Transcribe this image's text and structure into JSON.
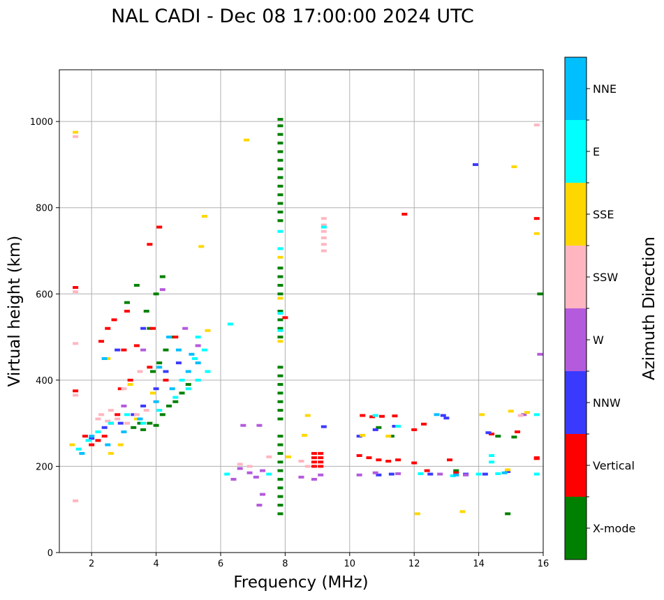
{
  "chart_data": {
    "type": "scatter",
    "title": "NAL CADI - Dec 08 17:00:00 2024 UTC",
    "xlabel": "Frequency (MHz)",
    "ylabel": "Virtual height (km)",
    "xlim": [
      1,
      16
    ],
    "ylim": [
      0,
      1120
    ],
    "xticks": [
      2,
      4,
      6,
      8,
      10,
      12,
      14,
      16
    ],
    "yticks": [
      0,
      200,
      400,
      600,
      800,
      1000
    ],
    "grid": true,
    "colorbar": {
      "label": "Azimuth Direction",
      "categories": [
        {
          "name": "X-mode",
          "color": "#008000"
        },
        {
          "name": "Vertical",
          "color": "#ff0000"
        },
        {
          "name": "NNW",
          "color": "#3a3aff"
        },
        {
          "name": "W",
          "color": "#b45adc"
        },
        {
          "name": "SSW",
          "color": "#ffb6c1"
        },
        {
          "name": "SSE",
          "color": "#ffd700"
        },
        {
          "name": "E",
          "color": "#00ffff"
        },
        {
          "name": "NNE",
          "color": "#00bfff"
        }
      ]
    },
    "series": [
      {
        "name": "X-mode",
        "points": [
          [
            7.85,
            1005
          ],
          [
            7.85,
            990
          ],
          [
            7.85,
            970
          ],
          [
            7.85,
            950
          ],
          [
            7.85,
            930
          ],
          [
            7.85,
            910
          ],
          [
            7.85,
            890
          ],
          [
            7.85,
            870
          ],
          [
            7.85,
            850
          ],
          [
            7.85,
            830
          ],
          [
            7.85,
            810
          ],
          [
            7.85,
            790
          ],
          [
            7.85,
            770
          ],
          [
            7.85,
            660
          ],
          [
            7.85,
            640
          ],
          [
            7.85,
            620
          ],
          [
            7.85,
            600
          ],
          [
            7.85,
            560
          ],
          [
            7.85,
            540
          ],
          [
            7.85,
            520
          ],
          [
            7.85,
            500
          ],
          [
            7.85,
            430
          ],
          [
            7.85,
            410
          ],
          [
            7.85,
            390
          ],
          [
            7.85,
            370
          ],
          [
            7.85,
            350
          ],
          [
            7.85,
            330
          ],
          [
            7.85,
            310
          ],
          [
            7.85,
            270
          ],
          [
            7.85,
            250
          ],
          [
            7.85,
            230
          ],
          [
            7.85,
            210
          ],
          [
            7.85,
            190
          ],
          [
            7.85,
            170
          ],
          [
            7.85,
            150
          ],
          [
            7.85,
            130
          ],
          [
            7.85,
            110
          ],
          [
            7.85,
            90
          ],
          [
            3.6,
            285
          ],
          [
            3.8,
            300
          ],
          [
            4.0,
            295
          ],
          [
            4.2,
            320
          ],
          [
            4.4,
            340
          ],
          [
            4.6,
            350
          ],
          [
            4.8,
            370
          ],
          [
            5.0,
            390
          ],
          [
            3.9,
            420
          ],
          [
            4.1,
            440
          ],
          [
            4.3,
            470
          ],
          [
            4.5,
            500
          ],
          [
            3.7,
            560
          ],
          [
            4.0,
            600
          ],
          [
            4.2,
            640
          ],
          [
            3.4,
            620
          ],
          [
            3.1,
            580
          ],
          [
            3.8,
            520
          ],
          [
            3.5,
            300
          ],
          [
            3.3,
            290
          ],
          [
            15.9,
            600
          ],
          [
            10.9,
            290
          ],
          [
            11.3,
            270
          ],
          [
            14.9,
            90
          ],
          [
            14.6,
            270
          ],
          [
            15.1,
            268
          ],
          [
            13.3,
            190
          ]
        ]
      },
      {
        "name": "Vertical",
        "points": [
          [
            1.5,
            615
          ],
          [
            1.5,
            375
          ],
          [
            1.8,
            270
          ],
          [
            2.0,
            250
          ],
          [
            2.2,
            260
          ],
          [
            2.4,
            270
          ],
          [
            2.6,
            300
          ],
          [
            2.8,
            320
          ],
          [
            2.5,
            520
          ],
          [
            2.3,
            490
          ],
          [
            2.7,
            540
          ],
          [
            3.1,
            560
          ],
          [
            3.0,
            470
          ],
          [
            3.4,
            480
          ],
          [
            2.9,
            380
          ],
          [
            3.2,
            400
          ],
          [
            3.8,
            430
          ],
          [
            3.9,
            520
          ],
          [
            4.1,
            755
          ],
          [
            3.8,
            715
          ],
          [
            4.3,
            400
          ],
          [
            4.6,
            500
          ],
          [
            8.9,
            230
          ],
          [
            8.9,
            220
          ],
          [
            8.9,
            210
          ],
          [
            8.9,
            200
          ],
          [
            9.1,
            230
          ],
          [
            9.1,
            220
          ],
          [
            9.1,
            210
          ],
          [
            9.1,
            200
          ],
          [
            10.3,
            225
          ],
          [
            10.6,
            220
          ],
          [
            10.9,
            215
          ],
          [
            11.2,
            212
          ],
          [
            11.5,
            215
          ],
          [
            11.7,
            785
          ],
          [
            12.0,
            285
          ],
          [
            12.3,
            298
          ],
          [
            12.0,
            208
          ],
          [
            12.4,
            190
          ],
          [
            13.1,
            215
          ],
          [
            13.3,
            185
          ],
          [
            14.4,
            275
          ],
          [
            15.2,
            280
          ],
          [
            15.8,
            775
          ],
          [
            15.8,
            218
          ],
          [
            15.8,
            220
          ],
          [
            8.0,
            545
          ],
          [
            10.4,
            318
          ],
          [
            10.7,
            315
          ],
          [
            11.0,
            316
          ],
          [
            11.4,
            317
          ]
        ]
      },
      {
        "name": "NNW",
        "points": [
          [
            2.0,
            265
          ],
          [
            2.4,
            290
          ],
          [
            2.9,
            300
          ],
          [
            3.3,
            320
          ],
          [
            3.6,
            340
          ],
          [
            4.0,
            380
          ],
          [
            4.3,
            420
          ],
          [
            4.7,
            440
          ],
          [
            2.8,
            470
          ],
          [
            3.6,
            520
          ],
          [
            13.9,
            900
          ],
          [
            9.2,
            292
          ],
          [
            10.3,
            270
          ],
          [
            10.8,
            285
          ],
          [
            11.4,
            293
          ],
          [
            10.9,
            180
          ],
          [
            11.3,
            182
          ],
          [
            12.5,
            182
          ],
          [
            13.0,
            312
          ],
          [
            13.6,
            182
          ],
          [
            14.2,
            182
          ],
          [
            14.9,
            188
          ],
          [
            12.9,
            318
          ],
          [
            14.3,
            278
          ]
        ]
      },
      {
        "name": "W",
        "points": [
          [
            6.4,
            170
          ],
          [
            6.6,
            195
          ],
          [
            6.9,
            185
          ],
          [
            7.1,
            175
          ],
          [
            7.3,
            190
          ],
          [
            7.2,
            295
          ],
          [
            6.7,
            295
          ],
          [
            7.3,
            135
          ],
          [
            7.2,
            110
          ],
          [
            8.5,
            175
          ],
          [
            8.9,
            170
          ],
          [
            9.1,
            180
          ],
          [
            10.3,
            180
          ],
          [
            10.8,
            185
          ],
          [
            11.5,
            183
          ],
          [
            12.8,
            182
          ],
          [
            13.6,
            180
          ],
          [
            15.4,
            320
          ],
          [
            15.9,
            460
          ],
          [
            4.9,
            520
          ],
          [
            5.3,
            480
          ],
          [
            4.2,
            610
          ],
          [
            3.0,
            340
          ],
          [
            3.6,
            470
          ]
        ]
      },
      {
        "name": "SSW",
        "points": [
          [
            1.5,
            965
          ],
          [
            1.5,
            605
          ],
          [
            1.5,
            485
          ],
          [
            1.5,
            365
          ],
          [
            1.5,
            120
          ],
          [
            2.2,
            310
          ],
          [
            2.5,
            305
          ],
          [
            2.8,
            310
          ],
          [
            3.1,
            300
          ],
          [
            3.4,
            320
          ],
          [
            3.7,
            330
          ],
          [
            2.6,
            330
          ],
          [
            2.3,
            320
          ],
          [
            6.6,
            205
          ],
          [
            6.9,
            200
          ],
          [
            7.5,
            222
          ],
          [
            8.5,
            212
          ],
          [
            8.7,
            200
          ],
          [
            9.2,
            775
          ],
          [
            9.2,
            760
          ],
          [
            9.2,
            745
          ],
          [
            9.2,
            730
          ],
          [
            9.2,
            715
          ],
          [
            9.2,
            700
          ],
          [
            15.8,
            992
          ],
          [
            15.3,
            318
          ],
          [
            3.0,
            380
          ],
          [
            3.5,
            420
          ]
        ]
      },
      {
        "name": "SSE",
        "points": [
          [
            1.5,
            975
          ],
          [
            1.4,
            250
          ],
          [
            2.6,
            230
          ],
          [
            2.9,
            250
          ],
          [
            3.4,
            310
          ],
          [
            3.9,
            370
          ],
          [
            2.5,
            450
          ],
          [
            3.2,
            390
          ],
          [
            5.5,
            780
          ],
          [
            5.4,
            710
          ],
          [
            5.6,
            515
          ],
          [
            6.8,
            957
          ],
          [
            7.85,
            685
          ],
          [
            7.85,
            590
          ],
          [
            7.85,
            490
          ],
          [
            8.6,
            272
          ],
          [
            8.7,
            318
          ],
          [
            10.4,
            272
          ],
          [
            11.2,
            270
          ],
          [
            12.1,
            90
          ],
          [
            13.5,
            95
          ],
          [
            14.1,
            320
          ],
          [
            15.1,
            895
          ],
          [
            15.0,
            328
          ],
          [
            15.5,
            325
          ],
          [
            15.8,
            740
          ],
          [
            14.9,
            192
          ],
          [
            8.1,
            222
          ]
        ]
      },
      {
        "name": "E",
        "points": [
          [
            1.6,
            240
          ],
          [
            1.9,
            260
          ],
          [
            2.2,
            280
          ],
          [
            2.6,
            300
          ],
          [
            3.1,
            320
          ],
          [
            3.6,
            300
          ],
          [
            4.1,
            330
          ],
          [
            4.6,
            360
          ],
          [
            5.0,
            380
          ],
          [
            5.3,
            400
          ],
          [
            5.6,
            420
          ],
          [
            5.2,
            450
          ],
          [
            4.8,
            400
          ],
          [
            5.5,
            470
          ],
          [
            5.3,
            500
          ],
          [
            6.3,
            530
          ],
          [
            7.85,
            745
          ],
          [
            7.85,
            705
          ],
          [
            7.85,
            555
          ],
          [
            7.85,
            515
          ],
          [
            9.2,
            755
          ],
          [
            10.8,
            318
          ],
          [
            11.5,
            293
          ],
          [
            12.2,
            183
          ],
          [
            13.2,
            178
          ],
          [
            14.0,
            182
          ],
          [
            14.4,
            225
          ],
          [
            14.4,
            210
          ],
          [
            14.6,
            183
          ],
          [
            15.8,
            320
          ],
          [
            15.8,
            182
          ],
          [
            6.2,
            182
          ],
          [
            7.5,
            182
          ]
        ]
      },
      {
        "name": "NNE",
        "points": [
          [
            1.7,
            230
          ],
          [
            2.0,
            270
          ],
          [
            2.5,
            250
          ],
          [
            3.0,
            280
          ],
          [
            3.5,
            310
          ],
          [
            4.0,
            350
          ],
          [
            4.5,
            380
          ],
          [
            5.0,
            420
          ],
          [
            5.3,
            440
          ],
          [
            4.7,
            470
          ],
          [
            4.4,
            500
          ],
          [
            4.1,
            430
          ],
          [
            5.1,
            460
          ],
          [
            2.4,
            450
          ],
          [
            12.7,
            320
          ],
          [
            13.3,
            180
          ],
          [
            14.8,
            185
          ]
        ]
      }
    ]
  }
}
